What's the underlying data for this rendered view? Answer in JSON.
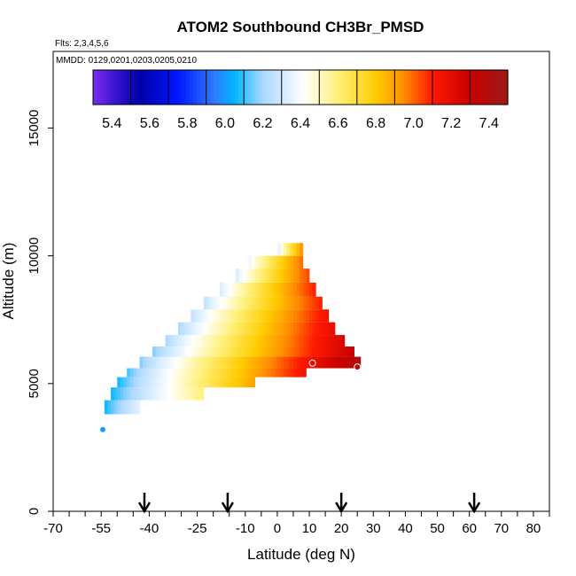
{
  "chart_data": {
    "type": "heatmap",
    "title": "ATOM2 Southbound CH3Br_PMSD",
    "subtitle_flights": "Flts: 2,3,4,5,6",
    "subtitle_dates": "MMDD: 0129,0201,0203,0205,0210",
    "xlabel": "Latitude (deg N)",
    "ylabel": "Altitude (m)",
    "xlim": [
      -70,
      85
    ],
    "ylim": [
      0,
      18000
    ],
    "x_tick_labels": [
      "-70",
      "-55",
      "-40",
      "-25",
      "-10",
      "0",
      "10",
      "20",
      "30",
      "40",
      "50",
      "60",
      "70",
      "80"
    ],
    "y_tick_labels": [
      "0",
      "5000",
      "10000",
      "15000"
    ],
    "colorbar": {
      "range": [
        5.3,
        7.5
      ],
      "tick_labels": [
        "5.4",
        "5.6",
        "5.8",
        "6.0",
        "6.2",
        "6.4",
        "6.6",
        "6.8",
        "7.0",
        "7.2",
        "7.4"
      ],
      "bin_edges": [
        5.3,
        5.5,
        5.7,
        5.9,
        6.1,
        6.3,
        6.5,
        6.7,
        6.9,
        7.1,
        7.3,
        7.5
      ],
      "stops": [
        {
          "v": 5.3,
          "c": "#7a2cf0"
        },
        {
          "v": 5.45,
          "c": "#2a0fc8"
        },
        {
          "v": 5.55,
          "c": "#0000a8"
        },
        {
          "v": 5.75,
          "c": "#0018ff"
        },
        {
          "v": 5.95,
          "c": "#2f7fff"
        },
        {
          "v": 6.05,
          "c": "#00b4ff"
        },
        {
          "v": 6.2,
          "c": "#aad8ff"
        },
        {
          "v": 6.42,
          "c": "#ffffff"
        },
        {
          "v": 6.6,
          "c": "#fff07a"
        },
        {
          "v": 6.8,
          "c": "#ffcc00"
        },
        {
          "v": 6.95,
          "c": "#ff8c00"
        },
        {
          "v": 7.1,
          "c": "#ff1a00"
        },
        {
          "v": 7.3,
          "c": "#c80000"
        },
        {
          "v": 7.5,
          "c": "#9e1a1a"
        }
      ]
    },
    "bands": [
      {
        "y0": 3800,
        "y1": 4350,
        "x0": -54,
        "x1": -43,
        "v0": 6.05,
        "v1": 6.35
      },
      {
        "y0": 4350,
        "y1": 4850,
        "x0": -52,
        "x1": -23,
        "v0": 6.05,
        "v1": 6.6
      },
      {
        "y0": 4850,
        "y1": 5250,
        "x0": -50,
        "x1": -7,
        "v0": 6.05,
        "v1": 6.9
      },
      {
        "y0": 5250,
        "y1": 5600,
        "x0": -47,
        "x1": 9,
        "v0": 6.1,
        "v1": 7.15
      },
      {
        "y0": 5600,
        "y1": 6050,
        "x0": -43,
        "x1": 26,
        "v0": 6.15,
        "v1": 7.4
      },
      {
        "y0": 6050,
        "y1": 6450,
        "x0": -39,
        "x1": 24,
        "v0": 6.15,
        "v1": 7.3
      },
      {
        "y0": 6450,
        "y1": 6900,
        "x0": -35,
        "x1": 21,
        "v0": 6.2,
        "v1": 7.25
      },
      {
        "y0": 6900,
        "y1": 7400,
        "x0": -31,
        "x1": 18,
        "v0": 6.2,
        "v1": 7.2
      },
      {
        "y0": 7400,
        "y1": 7900,
        "x0": -27,
        "x1": 16,
        "v0": 6.25,
        "v1": 7.15
      },
      {
        "y0": 7900,
        "y1": 8400,
        "x0": -23,
        "x1": 14,
        "v0": 6.25,
        "v1": 7.1
      },
      {
        "y0": 8400,
        "y1": 8950,
        "x0": -18,
        "x1": 12,
        "v0": 6.3,
        "v1": 7.1
      },
      {
        "y0": 8950,
        "y1": 9500,
        "x0": -13,
        "x1": 10,
        "v0": 6.3,
        "v1": 7.05
      },
      {
        "y0": 9500,
        "y1": 10000,
        "x0": -9,
        "x1": 8,
        "v0": 6.35,
        "v1": 7.0
      },
      {
        "y0": 10000,
        "y1": 10500,
        "x0": 0,
        "x1": 8,
        "v0": 6.3,
        "v1": 6.95
      }
    ],
    "points": [
      {
        "x": 11,
        "y": 5800,
        "v": 7.2
      },
      {
        "x": 25,
        "y": 5650,
        "v": 7.35
      },
      {
        "x": -54.5,
        "y": 3200,
        "v": 6.0
      }
    ],
    "arrow_latitudes": [
      -41.5,
      -15.5,
      20,
      61.5
    ]
  }
}
